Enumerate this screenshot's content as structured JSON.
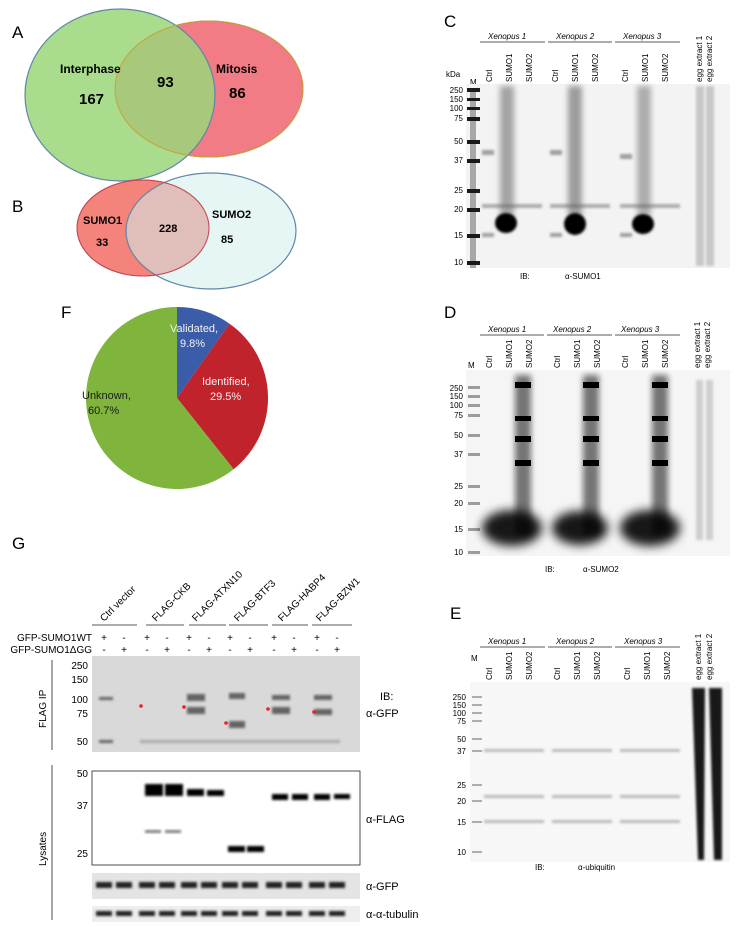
{
  "panels": {
    "A": {
      "letter": "A",
      "left_label": "Interphase",
      "right_label": "Mitosis",
      "left_only": "167",
      "overlap": "93",
      "right_only": "86",
      "left_color": "#9bd67a",
      "right_color": "#f27c86"
    },
    "B": {
      "letter": "B",
      "left_label": "SUMO1",
      "right_label": "SUMO2",
      "left_only": "33",
      "overlap": "228",
      "right_only": "85",
      "left_color": "#f4837c",
      "right_color": "#cfeeed"
    },
    "F": {
      "letter": "F",
      "slices": [
        {
          "label": "Validated,",
          "value_label": "9.8%",
          "value": 9.8,
          "color": "#3b5ca8"
        },
        {
          "label": "Identified,",
          "value_label": "29.5%",
          "value": 29.5,
          "color": "#c0232b"
        },
        {
          "label": "Unknown,",
          "value_label": "60.7%",
          "value": 60.7,
          "color": "#7fb43d"
        }
      ]
    },
    "C": {
      "letter": "C",
      "groups": [
        "Xenopus 1",
        "Xenopus 2",
        "Xenopus 3"
      ],
      "lanes": [
        "Ctrl",
        "SUMO1",
        "SUMO2"
      ],
      "extract_lanes": [
        "egg extract 1",
        "egg extract 2"
      ],
      "marker_lane": "M",
      "kda": "kDa",
      "markers": [
        "250",
        "150",
        "100",
        "75",
        "50",
        "37",
        "25",
        "20",
        "15",
        "10"
      ],
      "ib": "IB:",
      "antibody": "α-SUMO1"
    },
    "D": {
      "letter": "D",
      "groups": [
        "Xenopus 1",
        "Xenopus 2",
        "Xenopus 3"
      ],
      "lanes": [
        "Ctrl",
        "SUMO1",
        "SUMO2"
      ],
      "extract_lanes": [
        "egg extract 1",
        "egg extract 2"
      ],
      "marker_lane": "M",
      "markers": [
        "250",
        "150",
        "100",
        "75",
        "50",
        "37",
        "25",
        "20",
        "15",
        "10"
      ],
      "ib": "IB:",
      "antibody": "α-SUMO2"
    },
    "E": {
      "letter": "E",
      "groups": [
        "Xenopus 1",
        "Xenopus 2",
        "Xenopus 3"
      ],
      "lanes": [
        "Ctrl",
        "SUMO1",
        "SUMO2"
      ],
      "extract_lanes": [
        "egg extract 1",
        "egg extract 2"
      ],
      "marker_lane": "M",
      "markers": [
        "250",
        "150",
        "100",
        "75",
        "50",
        "37",
        "25",
        "20",
        "15",
        "10"
      ],
      "ib": "IB:",
      "antibody": "α-ubiquitin"
    },
    "G": {
      "letter": "G",
      "constructs": [
        "Ctrl vector",
        "FLAG-CKB",
        "FLAG-ATXN10",
        "FLAG-BTF3",
        "FLAG-HABP4",
        "FLAG-BZW1"
      ],
      "row1_label": "GFP-SUMO1WT",
      "row2_label": "GFP-SUMO1ΔGG",
      "plus": "+",
      "minus": "-",
      "ip_label": "FLAG IP",
      "ip_markers": [
        "250",
        "150",
        "100",
        "75",
        "50"
      ],
      "ib": "IB:",
      "ip_antibody": "α-GFP",
      "lysate_label": "Lysates",
      "lysate_markers": [
        "50",
        "37",
        "25"
      ],
      "lysate_antibody": "α-FLAG",
      "gfp_antibody": "α-GFP",
      "tubulin_antibody": "α-α-tubulin"
    }
  }
}
